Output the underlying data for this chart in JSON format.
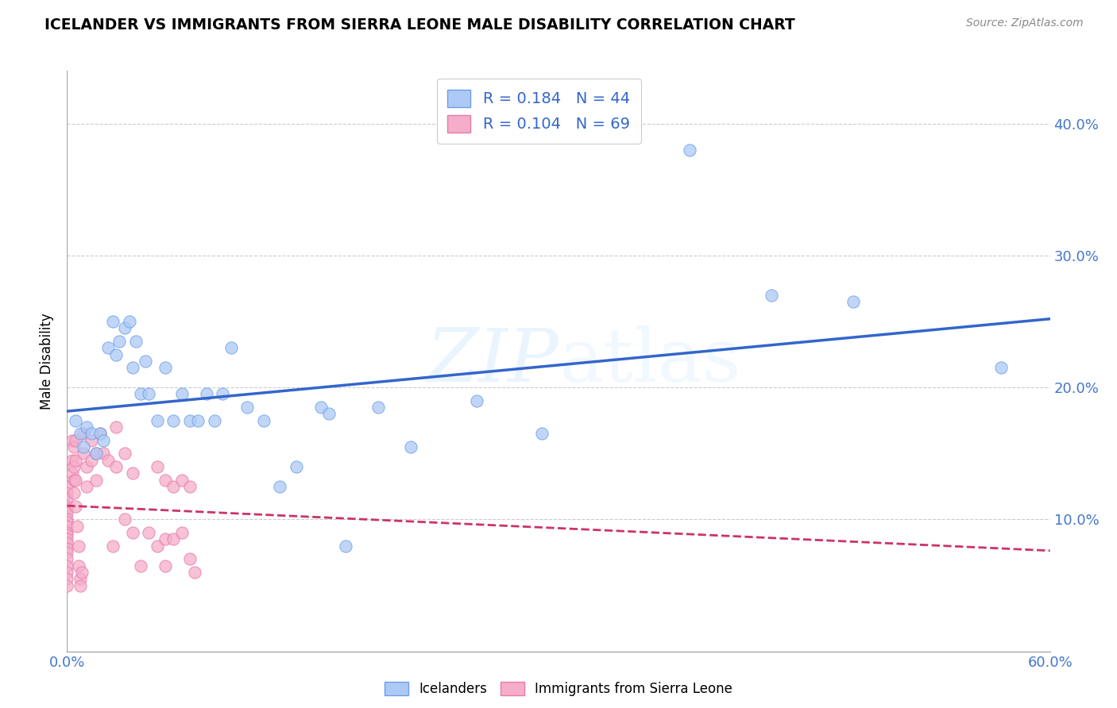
{
  "title": "ICELANDER VS IMMIGRANTS FROM SIERRA LEONE MALE DISABILITY CORRELATION CHART",
  "source": "Source: ZipAtlas.com",
  "ylabel": "Male Disability",
  "ytick_labels": [
    "10.0%",
    "20.0%",
    "30.0%",
    "40.0%"
  ],
  "ytick_values": [
    0.1,
    0.2,
    0.3,
    0.4
  ],
  "xlim": [
    0.0,
    0.6
  ],
  "ylim": [
    0.0,
    0.44
  ],
  "legend_r1": "R = 0.184   N = 44",
  "legend_r2": "R = 0.104   N = 69",
  "color_icelander": "#adc9f5",
  "color_sierra_leone": "#f5adc9",
  "edge_icelander": "#6aa0e8",
  "edge_sierra_leone": "#e87aaa",
  "trendline_icelander_color": "#3366cc",
  "trendline_sierra_leone_color": "#cc3366",
  "icelander_x": [
    0.005,
    0.008,
    0.01,
    0.012,
    0.015,
    0.018,
    0.02,
    0.022,
    0.025,
    0.028,
    0.03,
    0.032,
    0.035,
    0.038,
    0.04,
    0.042,
    0.045,
    0.048,
    0.05,
    0.055,
    0.06,
    0.065,
    0.07,
    0.075,
    0.08,
    0.085,
    0.09,
    0.095,
    0.1,
    0.11,
    0.12,
    0.13,
    0.14,
    0.155,
    0.16,
    0.17,
    0.19,
    0.21,
    0.25,
    0.29,
    0.38,
    0.43,
    0.48,
    0.57
  ],
  "icelander_y": [
    0.175,
    0.165,
    0.155,
    0.17,
    0.165,
    0.15,
    0.165,
    0.16,
    0.23,
    0.25,
    0.225,
    0.235,
    0.245,
    0.25,
    0.215,
    0.235,
    0.195,
    0.22,
    0.195,
    0.175,
    0.215,
    0.175,
    0.195,
    0.175,
    0.175,
    0.195,
    0.175,
    0.195,
    0.23,
    0.185,
    0.175,
    0.125,
    0.14,
    0.185,
    0.18,
    0.08,
    0.185,
    0.155,
    0.19,
    0.165,
    0.38,
    0.27,
    0.265,
    0.215
  ],
  "sierra_leone_x": [
    0.0,
    0.0,
    0.0,
    0.0,
    0.0,
    0.0,
    0.0,
    0.0,
    0.0,
    0.0,
    0.0,
    0.0,
    0.0,
    0.0,
    0.0,
    0.0,
    0.0,
    0.0,
    0.0,
    0.0,
    0.003,
    0.003,
    0.003,
    0.004,
    0.004,
    0.004,
    0.004,
    0.005,
    0.005,
    0.005,
    0.005,
    0.006,
    0.007,
    0.007,
    0.008,
    0.008,
    0.009,
    0.01,
    0.01,
    0.012,
    0.012,
    0.015,
    0.015,
    0.018,
    0.018,
    0.02,
    0.022,
    0.025,
    0.028,
    0.03,
    0.03,
    0.035,
    0.035,
    0.04,
    0.04,
    0.045,
    0.05,
    0.055,
    0.055,
    0.06,
    0.06,
    0.06,
    0.065,
    0.065,
    0.07,
    0.07,
    0.075,
    0.075,
    0.078
  ],
  "sierra_leone_y": [
    0.125,
    0.12,
    0.115,
    0.11,
    0.108,
    0.105,
    0.1,
    0.098,
    0.095,
    0.09,
    0.088,
    0.085,
    0.082,
    0.078,
    0.075,
    0.07,
    0.065,
    0.06,
    0.055,
    0.05,
    0.16,
    0.145,
    0.135,
    0.155,
    0.14,
    0.13,
    0.12,
    0.16,
    0.145,
    0.13,
    0.11,
    0.095,
    0.08,
    0.065,
    0.055,
    0.05,
    0.06,
    0.165,
    0.15,
    0.14,
    0.125,
    0.16,
    0.145,
    0.15,
    0.13,
    0.165,
    0.15,
    0.145,
    0.08,
    0.17,
    0.14,
    0.15,
    0.1,
    0.135,
    0.09,
    0.065,
    0.09,
    0.14,
    0.08,
    0.13,
    0.085,
    0.065,
    0.125,
    0.085,
    0.13,
    0.09,
    0.125,
    0.07,
    0.06
  ]
}
